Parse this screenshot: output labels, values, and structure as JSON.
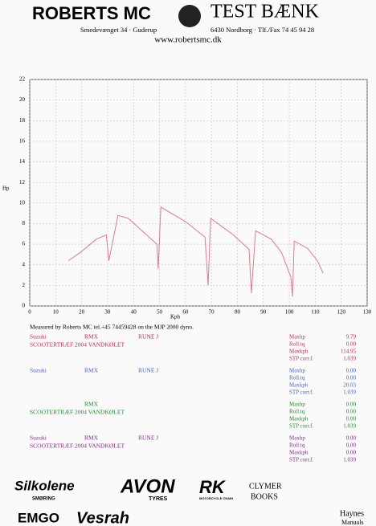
{
  "header": {
    "left": "ROBERTS MC",
    "right": "TEST BÆNK",
    "address_left": "Smedevænget 34 · Guderup",
    "address_right": "6430 Nordborg · Tlf./Fax 74 45 94 28",
    "website": "www.robertsmc.dk"
  },
  "chart_data": {
    "type": "line",
    "ylabel": "Hp",
    "xlabel": "Kph",
    "xlim": [
      0,
      130
    ],
    "xticks": [
      0,
      10,
      20,
      30,
      40,
      50,
      60,
      70,
      80,
      90,
      100,
      110,
      120,
      130
    ],
    "ylim": [
      0,
      22
    ],
    "yticks": [
      0,
      2,
      4,
      6,
      8,
      10,
      12,
      14,
      16,
      18,
      20,
      22
    ],
    "grid": true,
    "series": [
      {
        "color": "#e07a8a",
        "x": [
          14.9,
          19.5,
          25.7,
          29.5,
          30.5,
          34,
          38,
          49,
          49.5,
          50.5,
          60,
          67.5,
          68.7,
          69.7,
          78,
          84.5,
          85.4,
          87,
          93,
          97,
          100.6,
          101.2,
          101.9,
          107,
          110.8,
          113
        ],
        "values": [
          4.4,
          5.2,
          6.5,
          6.9,
          4.4,
          8.8,
          8.5,
          6,
          3.6,
          9.6,
          8.2,
          6.7,
          2,
          8.5,
          7,
          5.5,
          1.25,
          7.3,
          6.5,
          5.2,
          2.8,
          0.9,
          6.3,
          5.6,
          4.4,
          3.2
        ]
      }
    ]
  },
  "measured": "Measured by Roberts MC tel.+45 74459428 on the MJP 2000 dyno.",
  "results": [
    {
      "color": "#c8284a",
      "make": "Suzuki",
      "model": "RMX",
      "tuner": "RUNE J",
      "description": "SCOOTERTRÆF  2004  VANDKØLET",
      "labels": [
        "Maxhp",
        "Roll.tq",
        "Maxkph",
        "STP corr.f."
      ],
      "values": [
        "9.79",
        "0.00",
        "114.95",
        "1.039"
      ]
    },
    {
      "color": "#4a5fc8",
      "make": "Suzuki",
      "model": "RMX",
      "tuner": "RUNE J",
      "labels": [
        "Maxhp",
        "Roll.tq",
        "Maxkph",
        "STP corr.f."
      ],
      "values": [
        "0.00",
        "0.00",
        "20.03",
        "1.039"
      ]
    },
    {
      "color": "#1e8a2e",
      "model": "RMX",
      "description": "SCOOTERTRÆF  2004  VANDKØLET",
      "labels": [
        "Maxhp",
        "Roll.tq",
        "Maxkph",
        "STP corr.f."
      ],
      "values": [
        "0.00",
        "0.00",
        "0.00",
        "1.039"
      ]
    },
    {
      "color": "#8a2a8a",
      "make": "Suzuki",
      "model": "RMX",
      "tuner": "RUNE J",
      "description": "SCOOTERTRÆF  2004  VANDKØLET",
      "labels": [
        "Maxhp",
        "Roll.tq",
        "Maxkph",
        "STP corr.f."
      ],
      "values": [
        "0.00",
        "0.00",
        "0.00",
        "1.039"
      ]
    }
  ],
  "sponsors": [
    "Silkolene",
    "SMØRING",
    "AVON",
    "TYRES",
    "RK",
    "MOTORCYCLE CHAIN",
    "CLYMER",
    "BOOKS",
    "EMGO",
    "Vesrah",
    "Haynes",
    "Manuals"
  ]
}
